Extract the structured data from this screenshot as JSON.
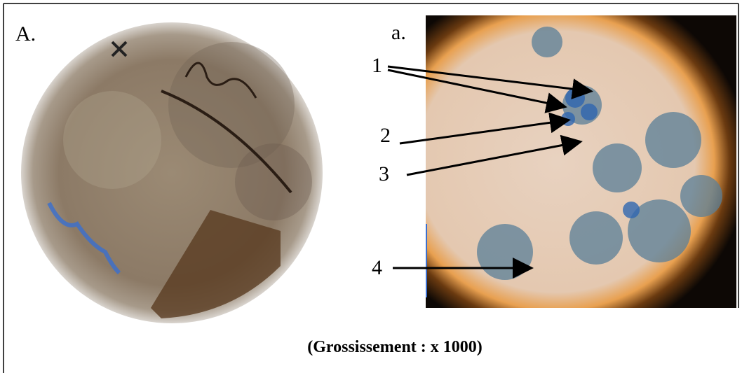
{
  "panels": {
    "left_label": "A.",
    "right_label": "a."
  },
  "labels": [
    "1",
    "2",
    "3",
    "4"
  ],
  "caption": "(Grossissement : x 1000)"
}
